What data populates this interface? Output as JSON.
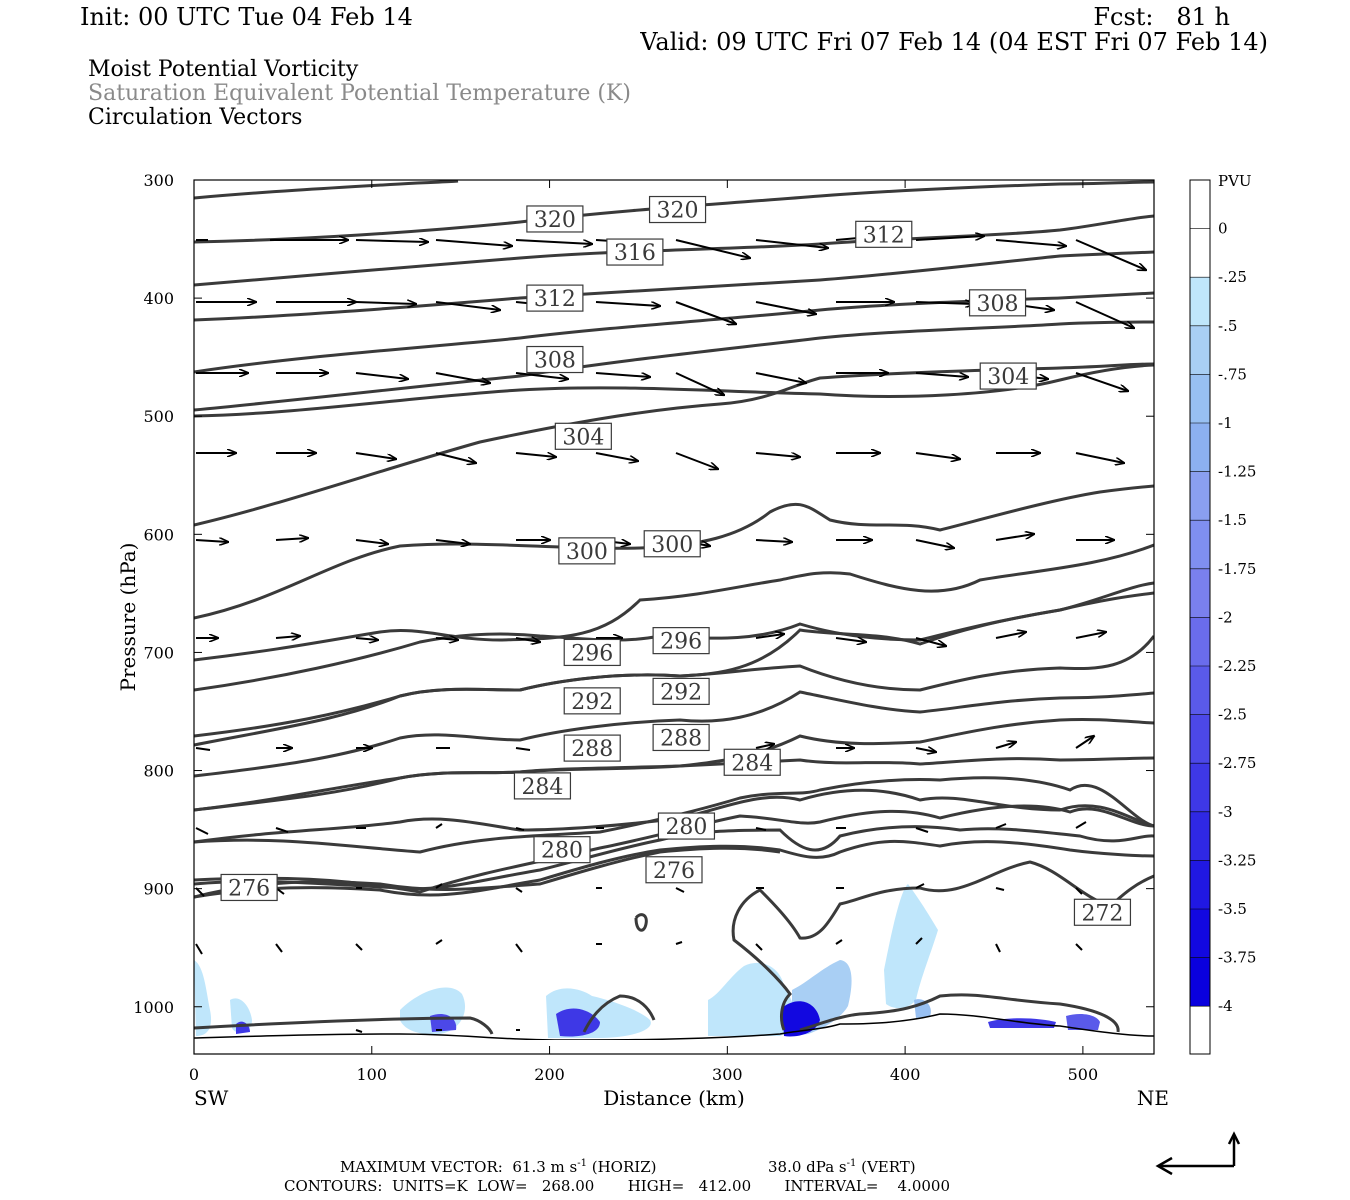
{
  "header": {
    "init": "Init: 00 UTC Tue 04 Feb 14",
    "fcst": "Fcst:   81 h",
    "valid": "Valid: 09 UTC Fri 07 Feb 14 (04 EST Fri 07 Feb 14)"
  },
  "titles": {
    "line1": "Moist Potential Vorticity",
    "line2": "Saturation Equivalent Potential Temperature (K)",
    "line3": "Circulation Vectors"
  },
  "colors": {
    "contour": "#3a3a3a",
    "vector": "#000000",
    "pv_shades": [
      "#ffffff",
      "#ffffff",
      "#bfe6fb",
      "#a9cff4",
      "#98c0f2",
      "#8cb0f0",
      "#8a9ff0",
      "#7f8ff0",
      "#7a80ee",
      "#6a6cec",
      "#5a5aea",
      "#4c48e8",
      "#3e38e6",
      "#2f28e4",
      "#2018e2",
      "#1208e0",
      "#0a00de"
    ]
  },
  "chart_data": {
    "type": "cross-section",
    "xlabel": "Distance (km)",
    "ylabel": "Pressure (hPa)",
    "xlim": [
      0,
      540
    ],
    "ylim": [
      1040,
      300
    ],
    "x_ticks": [
      "0",
      "100",
      "200",
      "300",
      "400",
      "500"
    ],
    "y_ticks": [
      "300",
      "400",
      "500",
      "600",
      "700",
      "800",
      "900",
      "1000"
    ],
    "end_labels": {
      "left": "SW",
      "right": "NE"
    },
    "contours_theta_e": {
      "units": "K",
      "low": 268.0,
      "high": 412.0,
      "interval": 4.0,
      "labels": [
        {
          "v": "320",
          "x": 203,
          "p": 333
        },
        {
          "v": "320",
          "x": 272,
          "p": 325
        },
        {
          "v": "316",
          "x": 248,
          "p": 361
        },
        {
          "v": "312",
          "x": 388,
          "p": 346
        },
        {
          "v": "312",
          "x": 203,
          "p": 400
        },
        {
          "v": "308",
          "x": 452,
          "p": 404
        },
        {
          "v": "308",
          "x": 203,
          "p": 452
        },
        {
          "v": "304",
          "x": 458,
          "p": 466
        },
        {
          "v": "304",
          "x": 219,
          "p": 517
        },
        {
          "v": "300",
          "x": 221,
          "p": 614
        },
        {
          "v": "300",
          "x": 269,
          "p": 608
        },
        {
          "v": "296",
          "x": 224,
          "p": 700
        },
        {
          "v": "296",
          "x": 274,
          "p": 690
        },
        {
          "v": "292",
          "x": 224,
          "p": 741
        },
        {
          "v": "292",
          "x": 274,
          "p": 733
        },
        {
          "v": "288",
          "x": 224,
          "p": 781
        },
        {
          "v": "288",
          "x": 274,
          "p": 772
        },
        {
          "v": "284",
          "x": 196,
          "p": 813
        },
        {
          "v": "284",
          "x": 314,
          "p": 793
        },
        {
          "v": "280",
          "x": 207,
          "p": 867
        },
        {
          "v": "280",
          "x": 277,
          "p": 847
        },
        {
          "v": "276",
          "x": 270,
          "p": 884
        },
        {
          "v": "276",
          "x": 31,
          "p": 899
        },
        {
          "v": "272",
          "x": 511,
          "p": 920
        }
      ]
    },
    "pv_colorbar": {
      "unit": "PVU",
      "labels": [
        "0",
        "-.25",
        "-.5",
        "-.75",
        "-1",
        "-1.25",
        "-1.5",
        "-1.75",
        "-2",
        "-2.25",
        "-2.5",
        "-2.75",
        "-3",
        "-3.25",
        "-3.5",
        "-3.75",
        "-4"
      ]
    },
    "vectors": {
      "max_horiz": "61.3 m s",
      "max_vert": "38.0 dPa s"
    }
  },
  "footer": {
    "line1_a": "MAXIMUM VECTOR:  61.3 m s",
    "line1_b": "-1",
    "line1_c": " (HORIZ)",
    "line1_d": "38.0 dPa s",
    "line1_e": "-1",
    "line1_f": " (VERT)",
    "line2": "CONTOURS:  UNITS=K  LOW=   268.00       HIGH=   412.00       INTERVAL=    4.0000"
  }
}
